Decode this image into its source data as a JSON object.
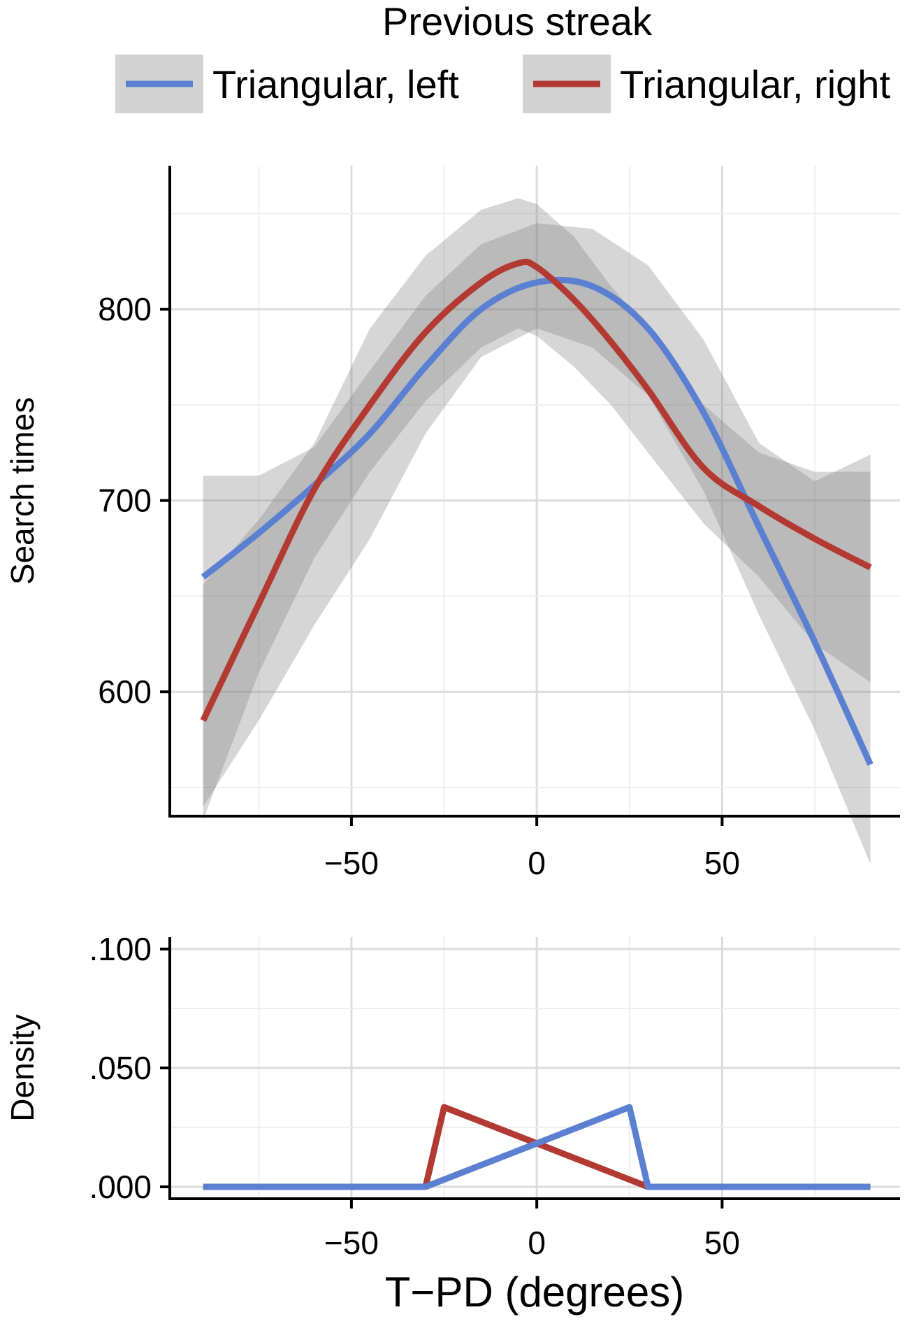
{
  "legend": {
    "title": "Previous streak",
    "items": [
      {
        "label": "Triangular, left",
        "color": "#5b80d1"
      },
      {
        "label": "Triangular, right",
        "color": "#b23a32"
      }
    ]
  },
  "chart_data": [
    {
      "type": "line",
      "title": "",
      "xlabel": "",
      "ylabel": "Search times",
      "xlim": [
        -99,
        98
      ],
      "ylim": [
        535,
        875
      ],
      "x_ticks": [
        -50,
        0,
        50
      ],
      "x_tick_labels": [
        "−50",
        "0",
        "50"
      ],
      "y_ticks": [
        600,
        700,
        800
      ],
      "y_tick_labels": [
        "600",
        "700",
        "800"
      ],
      "grid": true,
      "legend_position": "top",
      "series": [
        {
          "name": "Triangular, left",
          "color": "#5b80d1",
          "x": [
            -90,
            -75,
            -60,
            -45,
            -30,
            -15,
            0,
            15,
            30,
            45,
            60,
            75,
            90
          ],
          "y": [
            660,
            683,
            708,
            735,
            770,
            800,
            814,
            812,
            790,
            746,
            686,
            626,
            562
          ],
          "ci_low": [
            540,
            585,
            635,
            680,
            735,
            775,
            790,
            780,
            755,
            705,
            640,
            580,
            510
          ],
          "ci_high": [
            713,
            713,
            728,
            768,
            807,
            834,
            845,
            842,
            823,
            784,
            730,
            710,
            724
          ]
        },
        {
          "name": "Triangular, right",
          "color": "#b23a32",
          "x": [
            -90,
            -75,
            -60,
            -45,
            -30,
            -15,
            -5,
            0,
            10,
            20,
            30,
            45,
            60,
            75,
            90
          ],
          "y": [
            585,
            646,
            706,
            750,
            788,
            814,
            824,
            822,
            805,
            783,
            758,
            717,
            697,
            680,
            665
          ],
          "ci_low": [
            533,
            610,
            670,
            715,
            752,
            780,
            790,
            786,
            770,
            750,
            725,
            688,
            660,
            625,
            605
          ],
          "ci_high": [
            656,
            690,
            730,
            790,
            828,
            852,
            858,
            855,
            838,
            812,
            790,
            750,
            725,
            715,
            715
          ]
        }
      ]
    },
    {
      "type": "line",
      "title": "",
      "xlabel": "T−PD (degrees)",
      "ylabel": "Density",
      "xlim": [
        -99,
        98
      ],
      "ylim": [
        -0.005,
        0.105
      ],
      "x_ticks": [
        -50,
        0,
        50
      ],
      "x_tick_labels": [
        "−50",
        "0",
        "50"
      ],
      "y_ticks": [
        0,
        0.05,
        0.1
      ],
      "y_tick_labels": [
        ".000",
        ".050",
        ".100"
      ],
      "grid": true,
      "series": [
        {
          "name": "Triangular, right",
          "color": "#b23a32",
          "x": [
            -90,
            -30,
            -25,
            30,
            90
          ],
          "y": [
            0,
            0,
            0.0335,
            0,
            0
          ]
        },
        {
          "name": "Triangular, left",
          "color": "#5b80d1",
          "x": [
            -90,
            -30,
            25,
            30,
            90
          ],
          "y": [
            0,
            0,
            0.0335,
            0,
            0
          ]
        }
      ]
    }
  ]
}
